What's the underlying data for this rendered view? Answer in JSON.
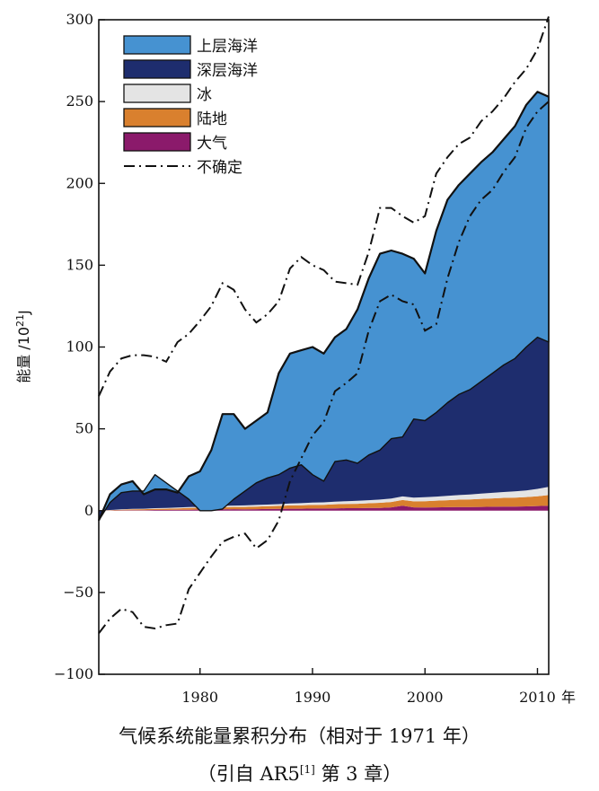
{
  "chart_data": {
    "type": "area",
    "ylabel_main": "能量 /10",
    "ylabel_sup": "21",
    "ylabel_unit": "J",
    "xunit": "年",
    "ylim": [
      -100,
      300
    ],
    "xlim": [
      1971,
      2011
    ],
    "yticks": [
      "−100",
      "−50",
      "0",
      "50",
      "100",
      "150",
      "200",
      "250",
      "300"
    ],
    "xticks": [
      "1980",
      "1990",
      "2000",
      "2010"
    ],
    "grid": false,
    "legend_position": "top-left",
    "x": [
      1971,
      1972,
      1973,
      1974,
      1975,
      1976,
      1977,
      1978,
      1979,
      1980,
      1981,
      1982,
      1983,
      1984,
      1985,
      1986,
      1987,
      1988,
      1989,
      1990,
      1991,
      1992,
      1993,
      1994,
      1995,
      1996,
      1997,
      1998,
      1999,
      2000,
      2001,
      2002,
      2003,
      2004,
      2005,
      2006,
      2007,
      2008,
      2009,
      2010,
      2011
    ],
    "series": [
      {
        "name": "大气",
        "color": "#8b1a6b",
        "values": [
          0,
          0.1,
          0.2,
          0.3,
          0.3,
          0.4,
          0.4,
          0.5,
          0.6,
          0.7,
          0.7,
          0.8,
          0.9,
          0.8,
          0.9,
          1.0,
          1.1,
          1.2,
          1.2,
          1.3,
          1.3,
          1.4,
          1.5,
          1.5,
          1.6,
          1.7,
          2.0,
          3.0,
          2.0,
          1.9,
          2.0,
          2.1,
          2.2,
          2.2,
          2.3,
          2.4,
          2.5,
          2.5,
          2.6,
          2.8,
          3.0
        ]
      },
      {
        "name": "陆地",
        "color": "#d9802e",
        "values": [
          0,
          0.2,
          0.4,
          0.5,
          0.6,
          0.7,
          0.8,
          0.9,
          1.0,
          1.1,
          1.2,
          1.3,
          1.4,
          1.5,
          1.6,
          1.7,
          1.8,
          2.0,
          2.1,
          2.2,
          2.3,
          2.5,
          2.6,
          2.7,
          2.9,
          3.1,
          3.3,
          3.5,
          3.7,
          3.9,
          4.1,
          4.3,
          4.5,
          4.7,
          4.9,
          5.1,
          5.3,
          5.5,
          5.7,
          6.0,
          6.5
        ]
      },
      {
        "name": "冰",
        "color": "#e4e4e4",
        "values": [
          0,
          0.1,
          0.2,
          0.3,
          0.3,
          0.4,
          0.5,
          0.5,
          0.6,
          0.6,
          0.7,
          0.8,
          0.8,
          0.9,
          1.0,
          1.0,
          1.1,
          1.2,
          1.3,
          1.4,
          1.5,
          1.6,
          1.7,
          1.8,
          1.9,
          2.0,
          2.1,
          2.2,
          2.3,
          2.4,
          2.5,
          2.7,
          2.8,
          3.0,
          3.2,
          3.4,
          3.6,
          3.8,
          4.0,
          4.5,
          5.0
        ]
      },
      {
        "name": "深层海洋",
        "color": "#1e2d6e",
        "values": [
          -6,
          4.6,
          10.2,
          10.9,
          10.8,
          20.5,
          15.3,
          10.1,
          4.8,
          -2.4,
          -2.6,
          -1.9,
          3.9,
          8.8,
          13.5,
          16.3,
          18.0,
          21.6,
          23.4,
          17.1,
          12.9,
          24.5,
          25.2,
          23.0,
          27.6,
          30.2,
          36.6,
          36.3,
          48.0,
          46.8,
          51.4,
          56.9,
          61.5,
          64.1,
          68.6,
          73.1,
          77.6,
          81.2,
          87.7,
          92.7,
          88.5
        ]
      },
      {
        "name": "上层海洋",
        "color": "#4692d1",
        "values": [
          0,
          5,
          5,
          6,
          -2,
          -9,
          -4,
          -1,
          14,
          24,
          37,
          58,
          52,
          38,
          38,
          40,
          62,
          70,
          70,
          78,
          78,
          76,
          80,
          94,
          108,
          120,
          115,
          112,
          98,
          90,
          111,
          124,
          128,
          132,
          134,
          135,
          138,
          142,
          148,
          150,
          150
        ]
      }
    ],
    "uncertainty": {
      "name": "不确定",
      "upper": [
        70,
        85,
        93,
        95,
        95,
        94,
        91,
        103,
        108,
        116,
        125,
        139,
        135,
        123,
        115,
        120,
        128,
        148,
        155,
        150,
        147,
        140,
        139,
        138,
        158,
        185,
        185,
        180,
        176,
        180,
        206,
        216,
        224,
        228,
        238,
        244,
        252,
        262,
        270,
        282,
        302
      ],
      "lower": [
        -75,
        -66,
        -60,
        -62,
        -71,
        -72,
        -70,
        -69,
        -48,
        -38,
        -28,
        -19,
        -16,
        -14,
        -23,
        -18,
        -6,
        18,
        32,
        46,
        54,
        73,
        78,
        84,
        110,
        128,
        132,
        128,
        126,
        110,
        114,
        142,
        164,
        180,
        190,
        196,
        207,
        216,
        234,
        244,
        250
      ]
    }
  },
  "caption": {
    "line1": "气候系统能量累积分布（相对于 1971 年）",
    "line2_pre": "（引自 AR5",
    "line2_sup": "[1]",
    "line2_post": " 第 3 章）"
  }
}
